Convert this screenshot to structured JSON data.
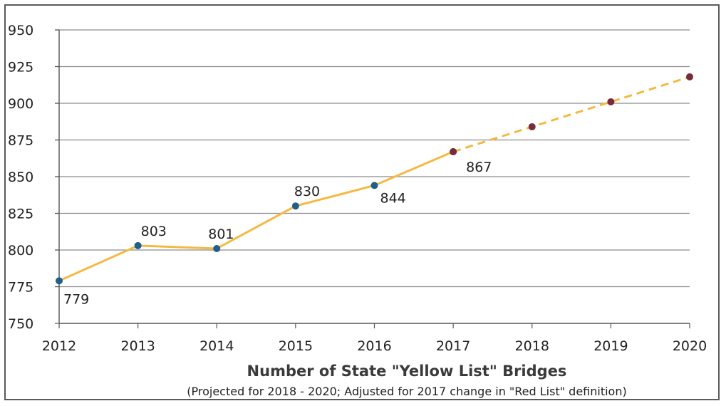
{
  "chart_data": {
    "type": "line",
    "title": "Number of State \"Yellow List\" Bridges",
    "subtitle": "(Projected for 2018 - 2020; Adjusted for 2017 change in \"Red List\" definition)",
    "x": [
      2012,
      2013,
      2014,
      2015,
      2016,
      2017,
      2018,
      2019,
      2020
    ],
    "x_tick_labels": [
      "2012",
      "2013",
      "2014",
      "2015",
      "2016",
      "2017",
      "2018",
      "2019",
      "2020"
    ],
    "y_tick_labels": [
      "750",
      "775",
      "800",
      "825",
      "850",
      "875",
      "900",
      "925",
      "950"
    ],
    "ylim": [
      750,
      950
    ],
    "ytick_step": 25,
    "grid": true,
    "series": [
      {
        "segment": "actual",
        "line_style": "solid",
        "line_color": "#f5b942",
        "marker_color": "#1f5f8a",
        "x": [
          2012,
          2013,
          2014,
          2015,
          2016,
          2017
        ],
        "values": [
          779,
          803,
          801,
          830,
          844,
          867
        ],
        "data_labels": [
          "779",
          "803",
          "801",
          "830",
          "844",
          "867"
        ]
      },
      {
        "segment": "projected",
        "line_style": "dashed",
        "line_color": "#f5b942",
        "marker_color": "#7a2a3a",
        "x": [
          2017,
          2018,
          2019,
          2020
        ],
        "values": [
          867,
          884,
          901,
          918
        ],
        "data_labels": []
      }
    ]
  }
}
